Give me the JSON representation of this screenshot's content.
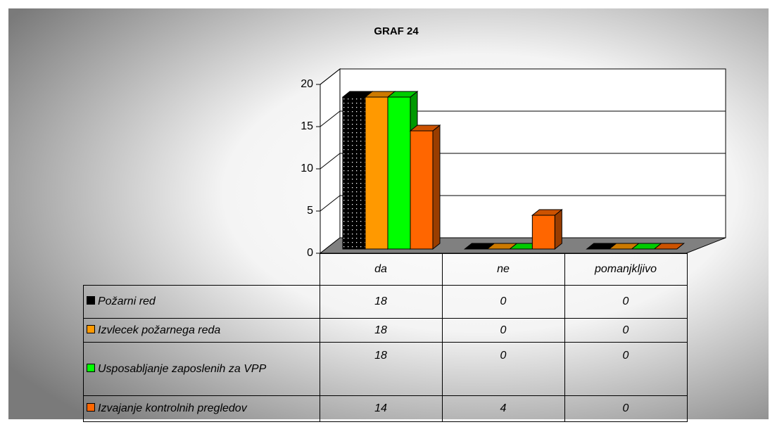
{
  "chart_data": {
    "type": "bar3d",
    "title": "GRAF 24",
    "categories": [
      "da",
      "ne",
      "pomanjkljivo"
    ],
    "series": [
      {
        "name": "Požarni red",
        "color": "#000000",
        "pattern": "dotted",
        "values": [
          18,
          0,
          0
        ]
      },
      {
        "name": "Izvlecek požarnega reda",
        "color": "#FF9900",
        "values": [
          18,
          0,
          0
        ]
      },
      {
        "name": "Usposabljanje zaposlenih za VPP",
        "color": "#00FF00",
        "values": [
          18,
          0,
          0
        ]
      },
      {
        "name": "Izvajanje kontrolnih pregledov",
        "color": "#FF6600",
        "values": [
          14,
          4,
          0
        ]
      }
    ],
    "ylim": [
      0,
      20
    ],
    "yticks": [
      0,
      5,
      10,
      15,
      20
    ],
    "grid": true
  }
}
